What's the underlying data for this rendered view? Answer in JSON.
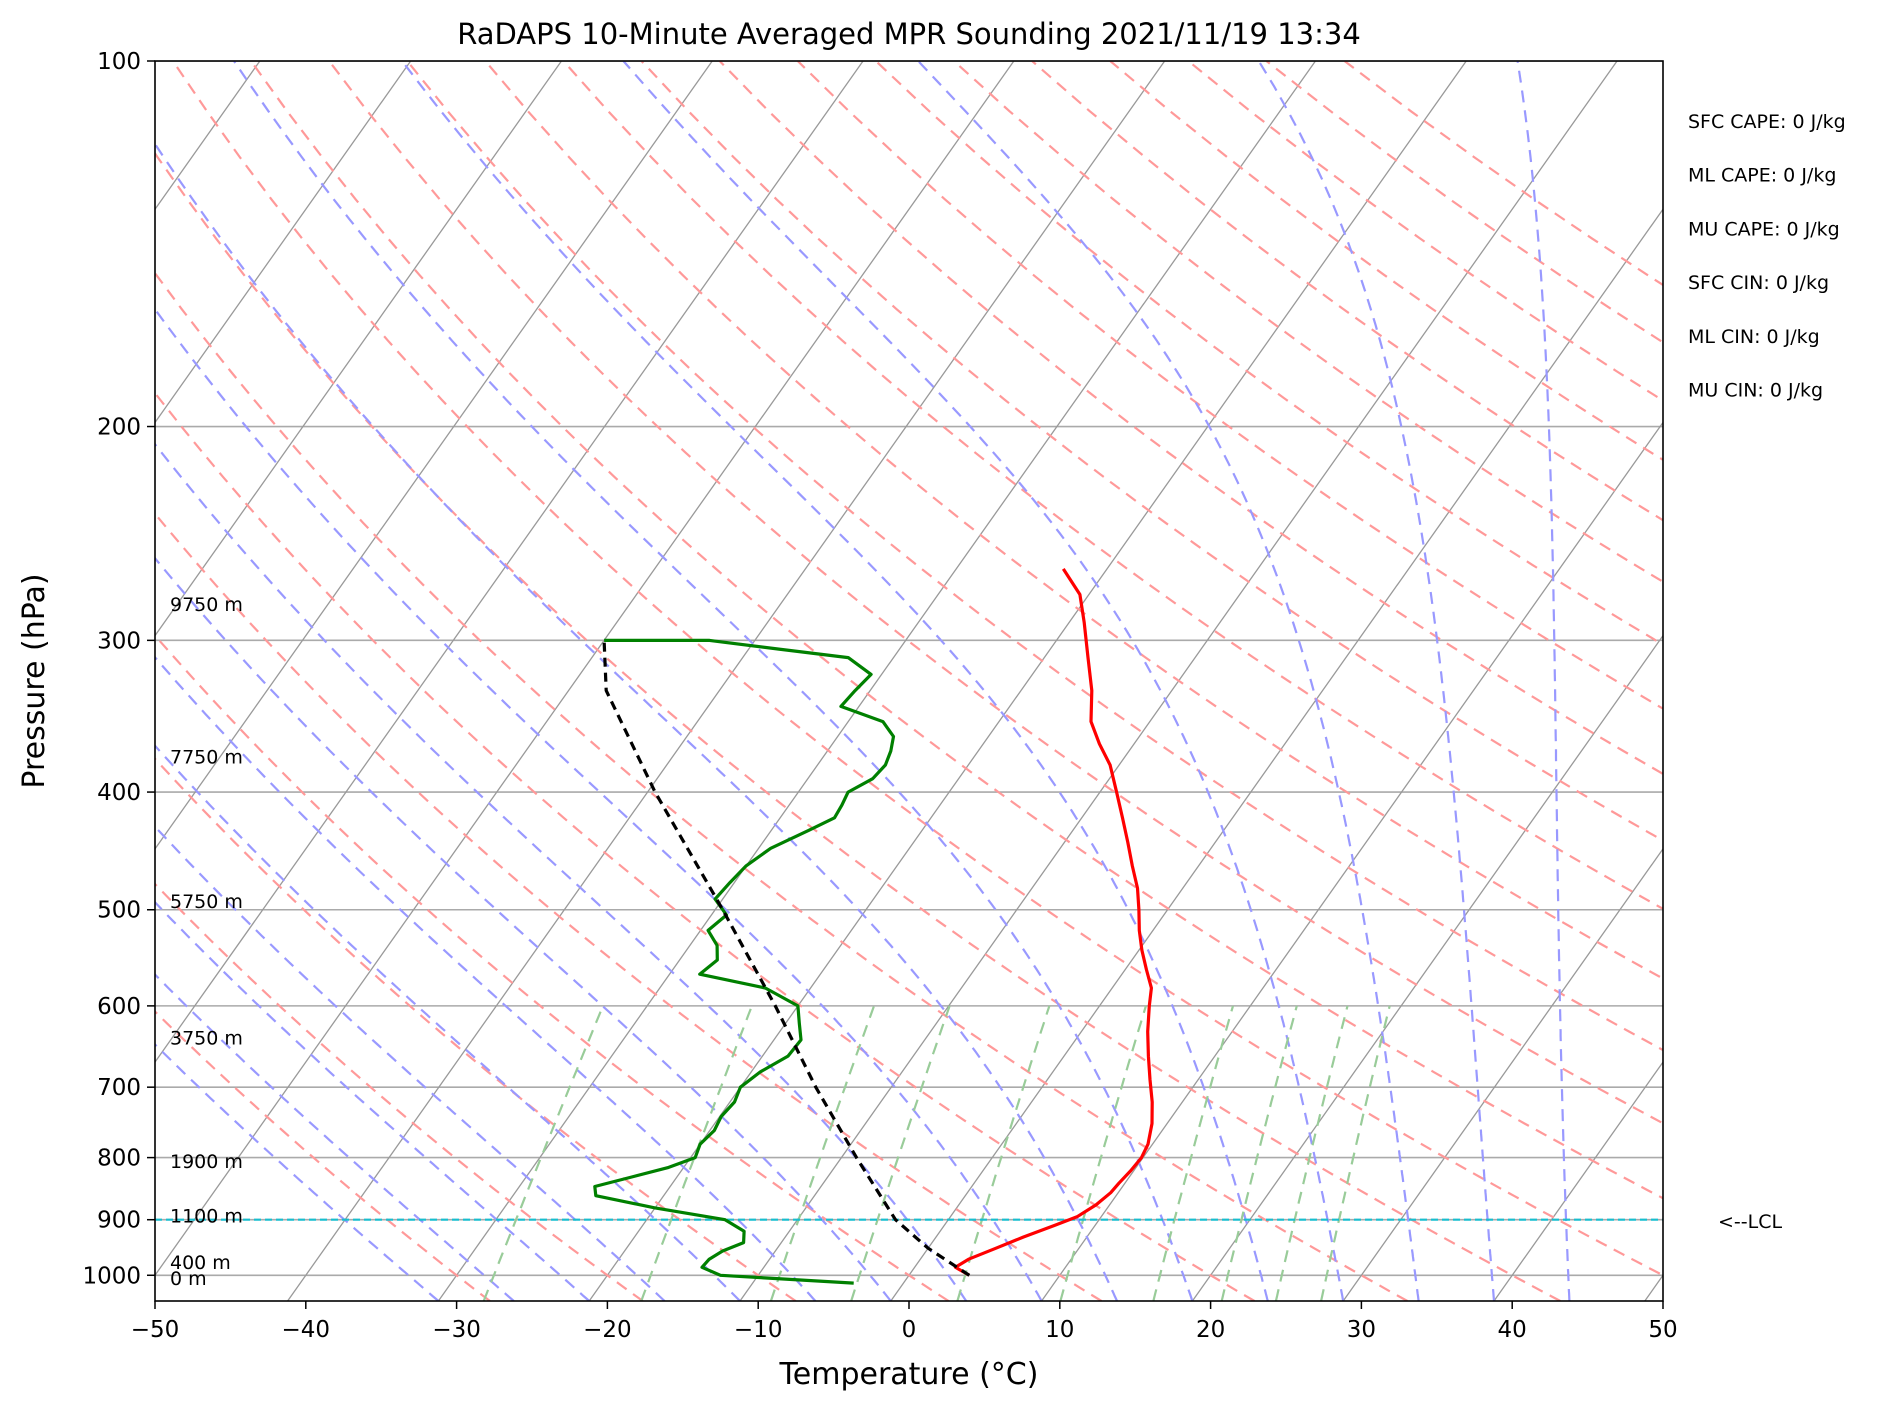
{
  "chart_data": {
    "type": "line",
    "title": "RaDAPS 10-Minute Averaged MPR Sounding 2021/11/19 13:34",
    "xlabel": "Temperature (°C)",
    "ylabel": "Pressure (hPa)",
    "xlim": [
      -50,
      50
    ],
    "ylim": [
      1050,
      100
    ],
    "y_scale": "log",
    "x_ticks": [
      -50,
      -40,
      -30,
      -20,
      -10,
      0,
      10,
      20,
      30,
      40,
      50
    ],
    "x_tick_labels": [
      "−50",
      "−40",
      "−30",
      "−20",
      "−10",
      "0",
      "10",
      "20",
      "30",
      "40",
      "50"
    ],
    "y_ticks": [
      1000,
      900,
      800,
      700,
      600,
      500,
      400,
      300,
      200,
      100
    ],
    "y_tick_labels": [
      "1000",
      "900",
      "800",
      "700",
      "600",
      "500",
      "400",
      "300",
      "200",
      "100"
    ],
    "grid": true,
    "colors": {
      "temperature": "#ff0000",
      "dewpoint": "#008000",
      "parcel": "#000000",
      "lcl": "#17becf",
      "dry_adiabats": "#ff9999",
      "moist_adiabats": "#9999ff",
      "mixing_ratio": "#99cc99",
      "isotherms": "#999999",
      "isobars": "#aaaaaa"
    },
    "series": [
      {
        "key": "temperature",
        "points": [
          {
            "p": 1000,
            "t": 4.0
          },
          {
            "p": 985,
            "t": 2.7
          },
          {
            "p": 970,
            "t": 3.2
          },
          {
            "p": 950,
            "t": 4.5
          },
          {
            "p": 930,
            "t": 5.8
          },
          {
            "p": 910,
            "t": 7.3
          },
          {
            "p": 895,
            "t": 8.4
          },
          {
            "p": 875,
            "t": 9.1
          },
          {
            "p": 855,
            "t": 9.5
          },
          {
            "p": 840,
            "t": 9.6
          },
          {
            "p": 820,
            "t": 9.8
          },
          {
            "p": 800,
            "t": 9.9
          },
          {
            "p": 780,
            "t": 9.7
          },
          {
            "p": 750,
            "t": 9.0
          },
          {
            "p": 720,
            "t": 8.0
          },
          {
            "p": 690,
            "t": 6.8
          },
          {
            "p": 660,
            "t": 5.6
          },
          {
            "p": 630,
            "t": 4.4
          },
          {
            "p": 600,
            "t": 3.3
          },
          {
            "p": 580,
            "t": 2.6
          },
          {
            "p": 560,
            "t": 1.4
          },
          {
            "p": 540,
            "t": 0.2
          },
          {
            "p": 520,
            "t": -0.9
          },
          {
            "p": 500,
            "t": -1.9
          },
          {
            "p": 480,
            "t": -3.0
          },
          {
            "p": 460,
            "t": -4.4
          },
          {
            "p": 440,
            "t": -5.8
          },
          {
            "p": 420,
            "t": -7.3
          },
          {
            "p": 400,
            "t": -8.9
          },
          {
            "p": 380,
            "t": -10.6
          },
          {
            "p": 365,
            "t": -12.3
          },
          {
            "p": 350,
            "t": -13.9
          },
          {
            "p": 330,
            "t": -15.3
          },
          {
            "p": 310,
            "t": -17.1
          },
          {
            "p": 290,
            "t": -19.0
          },
          {
            "p": 275,
            "t": -20.6
          },
          {
            "p": 262,
            "t": -22.9
          }
        ]
      },
      {
        "key": "dewpoint",
        "points": [
          {
            "p": 1015,
            "t": -3.3
          },
          {
            "p": 1000,
            "t": -12.5
          },
          {
            "p": 985,
            "t": -14.1
          },
          {
            "p": 970,
            "t": -14.0
          },
          {
            "p": 955,
            "t": -13.5
          },
          {
            "p": 940,
            "t": -12.5
          },
          {
            "p": 920,
            "t": -13.0
          },
          {
            "p": 900,
            "t": -14.8
          },
          {
            "p": 880,
            "t": -20.0
          },
          {
            "p": 860,
            "t": -24.5
          },
          {
            "p": 845,
            "t": -25.0
          },
          {
            "p": 830,
            "t": -23.0
          },
          {
            "p": 815,
            "t": -21.0
          },
          {
            "p": 800,
            "t": -19.7
          },
          {
            "p": 780,
            "t": -20.0
          },
          {
            "p": 760,
            "t": -19.7
          },
          {
            "p": 740,
            "t": -19.9
          },
          {
            "p": 720,
            "t": -19.7
          },
          {
            "p": 700,
            "t": -20.0
          },
          {
            "p": 680,
            "t": -19.4
          },
          {
            "p": 660,
            "t": -18.3
          },
          {
            "p": 640,
            "t": -18.2
          },
          {
            "p": 620,
            "t": -19.1
          },
          {
            "p": 600,
            "t": -20.0
          },
          {
            "p": 580,
            "t": -23.0
          },
          {
            "p": 565,
            "t": -28.0
          },
          {
            "p": 550,
            "t": -27.5
          },
          {
            "p": 535,
            "t": -28.2
          },
          {
            "p": 520,
            "t": -29.5
          },
          {
            "p": 505,
            "t": -29.0
          },
          {
            "p": 490,
            "t": -30.5
          },
          {
            "p": 475,
            "t": -30.3
          },
          {
            "p": 460,
            "t": -30.0
          },
          {
            "p": 445,
            "t": -29.2
          },
          {
            "p": 430,
            "t": -27.5
          },
          {
            "p": 420,
            "t": -26.4
          },
          {
            "p": 410,
            "t": -26.5
          },
          {
            "p": 400,
            "t": -26.7
          },
          {
            "p": 390,
            "t": -25.7
          },
          {
            "p": 380,
            "t": -25.5
          },
          {
            "p": 370,
            "t": -25.8
          },
          {
            "p": 360,
            "t": -26.3
          },
          {
            "p": 350,
            "t": -27.7
          },
          {
            "p": 340,
            "t": -31.2
          },
          {
            "p": 330,
            "t": -31.0
          },
          {
            "p": 320,
            "t": -30.7
          },
          {
            "p": 310,
            "t": -33.0
          },
          {
            "p": 305,
            "t": -38.0
          },
          {
            "p": 300,
            "t": -43.0
          },
          {
            "p": 300,
            "t": -50.0
          }
        ]
      },
      {
        "key": "parcel",
        "points": [
          {
            "p": 1000,
            "t": 4.0
          },
          {
            "p": 950,
            "t": 0.0
          },
          {
            "p": 900,
            "t": -3.5
          },
          {
            "p": 800,
            "t": -9.0
          },
          {
            "p": 700,
            "t": -15.0
          },
          {
            "p": 600,
            "t": -21.5
          },
          {
            "p": 500,
            "t": -29.5
          },
          {
            "p": 400,
            "t": -39.5
          },
          {
            "p": 330,
            "t": -47.5
          },
          {
            "p": 300,
            "t": -50.0
          }
        ]
      }
    ],
    "lcl_pressure": 900,
    "height_labels": [
      {
        "p": 280,
        "text": "9750 m"
      },
      {
        "p": 374,
        "text": "7750 m"
      },
      {
        "p": 492,
        "text": "5750 m"
      },
      {
        "p": 637,
        "text": "3750 m"
      },
      {
        "p": 805,
        "text": "1900 m"
      },
      {
        "p": 893,
        "text": "1100 m"
      },
      {
        "p": 975,
        "text": "400 m"
      },
      {
        "p": 1005,
        "text": "0 m"
      }
    ],
    "indices": [
      "SFC CAPE: 0 J/kg",
      "ML CAPE: 0 J/kg",
      "MU CAPE: 0 J/kg",
      "SFC CIN: 0 J/kg",
      "ML CIN: 0 J/kg",
      "MU CIN: 0 J/kg"
    ],
    "lcl_label": "<--LCL"
  }
}
